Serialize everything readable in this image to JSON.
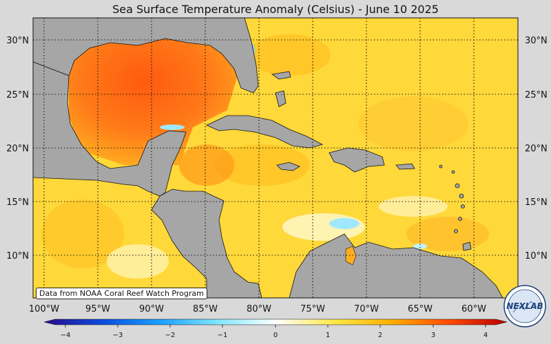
{
  "title": "Sea Surface Temperature Anomaly (Celsius) - June 10 2025",
  "credit": "Data from NOAA Coral Reef Watch Program",
  "logo_text": "NEXLAB",
  "lat_labels": [
    "30°N",
    "25°N",
    "20°N",
    "15°N",
    "10°N"
  ],
  "lon_labels": [
    "100°W",
    "95°W",
    "90°W",
    "85°W",
    "80°W",
    "75°W",
    "70°W",
    "65°W",
    "60°W"
  ],
  "colorbar": {
    "ticks": [
      "−4",
      "−3",
      "−2",
      "−1",
      "0",
      "1",
      "2",
      "3",
      "4"
    ],
    "min": -4,
    "max": 4,
    "colors": [
      "#2a0a8c",
      "#0a4bdc",
      "#1aa0ff",
      "#7fe8ff",
      "#ffffff",
      "#ffe94a",
      "#ffb000",
      "#ff4a00",
      "#b80000"
    ]
  },
  "colors": {
    "land": "#a6a6a6",
    "ocean_base": "#ffd83a",
    "gulf_warm": "#ff8a1c",
    "gulf_hot": "#ff5a10"
  }
}
